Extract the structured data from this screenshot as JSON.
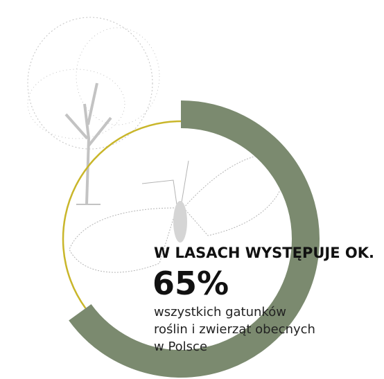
{
  "chart_data": {
    "type": "donut",
    "title": "W LASACH WYSTĘPUJE OK.",
    "values": [
      65
    ],
    "value_labels": [
      "65%"
    ],
    "description": [
      "wszystkich gatunków",
      "roślin i zwierząt obecnych",
      "w Polsce"
    ],
    "color": "#7b8a6f",
    "rest_color": "#c9b62a"
  }
}
